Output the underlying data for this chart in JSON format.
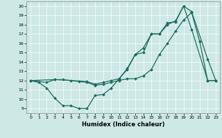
{
  "xlabel": "Humidex (Indice chaleur)",
  "bg_color": "#cde8e5",
  "line_color": "#1a6b5e",
  "xlim": [
    -0.5,
    23.5
  ],
  "ylim": [
    8.5,
    20.5
  ],
  "xticks": [
    0,
    1,
    2,
    3,
    4,
    5,
    6,
    7,
    8,
    9,
    10,
    11,
    12,
    13,
    14,
    15,
    16,
    17,
    18,
    19,
    20,
    21,
    22,
    23
  ],
  "yticks": [
    9,
    10,
    11,
    12,
    13,
    14,
    15,
    16,
    17,
    18,
    19,
    20
  ],
  "line1_x": [
    0,
    1,
    2,
    3,
    4,
    5,
    6,
    7,
    8,
    9,
    10,
    11,
    12,
    13,
    14,
    15,
    16,
    17,
    18,
    19,
    20,
    22,
    23
  ],
  "line1_y": [
    12,
    11.8,
    11.2,
    10.1,
    9.3,
    9.3,
    9.0,
    9.0,
    10.4,
    10.5,
    11.2,
    12.2,
    13.3,
    14.8,
    15.0,
    17.0,
    17.0,
    18.2,
    18.3,
    20.0,
    19.4,
    14.3,
    12.0
  ],
  "line2_x": [
    0,
    2,
    3,
    4,
    5,
    6,
    7,
    8,
    9,
    10,
    11,
    12,
    13,
    14,
    15,
    16,
    17,
    18,
    19,
    20,
    21,
    22,
    23
  ],
  "line2_y": [
    12,
    11.8,
    12.1,
    12.1,
    12.0,
    11.9,
    11.8,
    11.5,
    11.6,
    11.8,
    12.0,
    12.2,
    12.2,
    12.5,
    13.2,
    14.8,
    16.0,
    17.3,
    18.5,
    19.3,
    16.2,
    12.0,
    12.0
  ],
  "line3_x": [
    0,
    3,
    7,
    8,
    9,
    10,
    11,
    12,
    13,
    14,
    15,
    16,
    17,
    18,
    19,
    20,
    22,
    23
  ],
  "line3_y": [
    12,
    12.1,
    11.9,
    11.6,
    11.8,
    12.0,
    12.2,
    13.2,
    14.8,
    15.5,
    17.0,
    17.0,
    18.0,
    18.4,
    20.0,
    17.5,
    12.0,
    12.0
  ]
}
